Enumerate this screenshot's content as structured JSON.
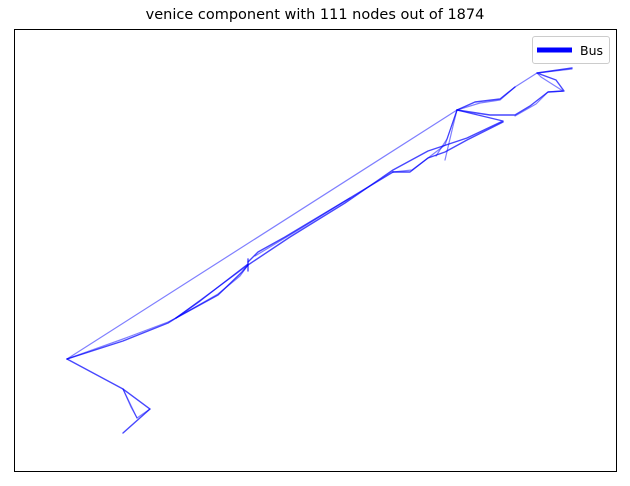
{
  "figure": {
    "title": "venice component with 111 nodes out of 1874"
  },
  "legend": {
    "label": "Bus",
    "color": "#0000ff"
  },
  "colors": {
    "edge": "#0000ff",
    "frame": "#000000",
    "background": "#ffffff"
  },
  "chart_data": {
    "type": "network",
    "axes_visible": false,
    "legend_placement": "top-right",
    "series": [
      {
        "name": "Bus",
        "color": "#0000ff"
      }
    ]
  }
}
